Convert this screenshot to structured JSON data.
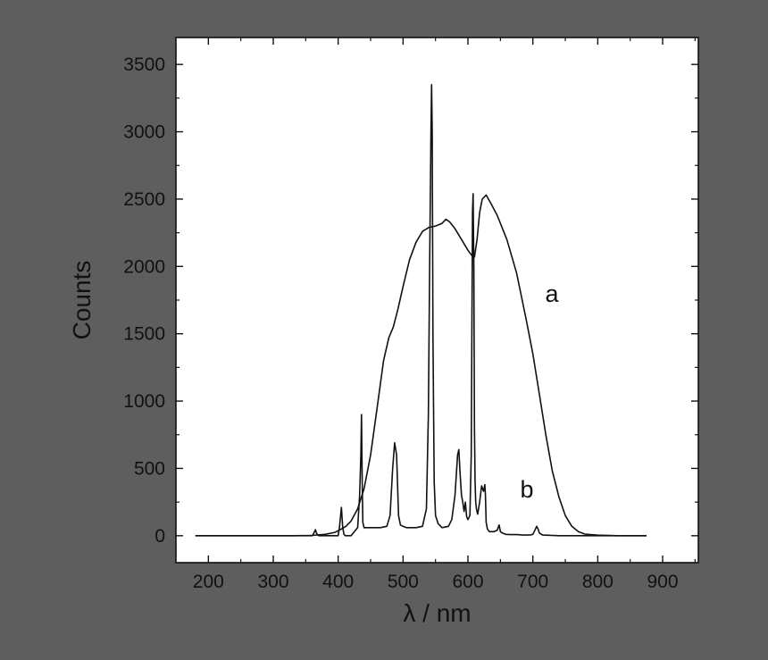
{
  "colors": {
    "background": "#5e5e5e",
    "plot_area": "#ffffff",
    "line": "#111111"
  },
  "chart_data": {
    "type": "line",
    "title": "",
    "xlabel": "λ / nm",
    "ylabel": "Counts",
    "xlim": [
      150,
      955
    ],
    "ylim": [
      -200,
      3700
    ],
    "x_ticks": [
      200,
      300,
      400,
      500,
      600,
      700,
      800,
      900
    ],
    "y_ticks": [
      0,
      500,
      1000,
      1500,
      2000,
      2500,
      3000,
      3500
    ],
    "grid": false,
    "legend": "none",
    "series": [
      {
        "label": "a",
        "x": [
          180,
          330,
          360,
          380,
          395,
          405,
          412,
          420,
          430,
          440,
          450,
          460,
          470,
          478,
          485,
          492,
          500,
          510,
          520,
          530,
          540,
          550,
          560,
          566,
          572,
          580,
          590,
          600,
          606,
          610,
          614,
          618,
          622,
          628,
          635,
          645,
          660,
          675,
          690,
          700,
          710,
          720,
          730,
          740,
          750,
          760,
          770,
          780,
          800,
          830,
          875
        ],
        "y": [
          0,
          0,
          2,
          10,
          25,
          50,
          70,
          110,
          200,
          350,
          600,
          950,
          1300,
          1470,
          1550,
          1680,
          1850,
          2050,
          2180,
          2260,
          2290,
          2300,
          2320,
          2350,
          2330,
          2280,
          2200,
          2120,
          2080,
          2070,
          2200,
          2400,
          2500,
          2530,
          2470,
          2380,
          2200,
          1950,
          1600,
          1350,
          1050,
          750,
          480,
          290,
          150,
          70,
          30,
          12,
          4,
          0,
          0
        ]
      },
      {
        "label": "b",
        "x": [
          180,
          360,
          362,
          365,
          367,
          370,
          380,
          400,
          402,
          405,
          407,
          409,
          411,
          420,
          430,
          433,
          435,
          436,
          437,
          438,
          440,
          450,
          465,
          475,
          480,
          484,
          487,
          490,
          493,
          496,
          500,
          505,
          520,
          530,
          536,
          539,
          541,
          543,
          544,
          545,
          546,
          548,
          550,
          554,
          560,
          570,
          575,
          580,
          584,
          586,
          588,
          590,
          592,
          594,
          596,
          598,
          600,
          603,
          605,
          606,
          607,
          608,
          609,
          610,
          611,
          612,
          613,
          615,
          618,
          621,
          624,
          626,
          627,
          628,
          630,
          633,
          640,
          645,
          648,
          650,
          653,
          658,
          665,
          675,
          685,
          695,
          700,
          703,
          706,
          708,
          710,
          715,
          740,
          800,
          875
        ],
        "y": [
          0,
          0,
          15,
          45,
          15,
          0,
          0,
          0,
          60,
          210,
          60,
          10,
          0,
          0,
          60,
          300,
          600,
          900,
          400,
          100,
          60,
          60,
          60,
          70,
          150,
          500,
          690,
          600,
          150,
          80,
          70,
          60,
          60,
          70,
          200,
          900,
          2000,
          3000,
          3350,
          3000,
          1500,
          400,
          150,
          90,
          60,
          70,
          120,
          300,
          600,
          640,
          450,
          300,
          250,
          180,
          250,
          140,
          120,
          150,
          600,
          1500,
          2400,
          2540,
          2000,
          800,
          400,
          250,
          200,
          160,
          250,
          370,
          330,
          380,
          300,
          100,
          50,
          30,
          30,
          40,
          80,
          30,
          20,
          10,
          8,
          8,
          5,
          5,
          10,
          40,
          70,
          50,
          20,
          5,
          0,
          0,
          0
        ]
      }
    ]
  }
}
